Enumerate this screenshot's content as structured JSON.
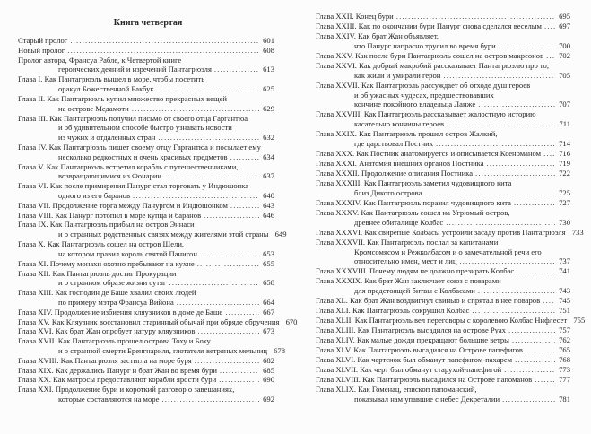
{
  "title": "Книга четвертая",
  "left": [
    {
      "lines": [
        "Старый пролог"
      ],
      "page": "601"
    },
    {
      "lines": [
        "Новый пролог"
      ],
      "page": "608"
    },
    {
      "lines": [
        "Пролог автора, Франсуа Рабле, к Четвертой книге",
        "героических деяний и изречений Пантагрюэля"
      ],
      "page": "613"
    },
    {
      "lines": [
        "Глава I. Как Пантагрюэль вышел в море, чтобы посетить",
        "оракул Божественной Бакбук"
      ],
      "page": "625"
    },
    {
      "lines": [
        "Глава II. Как Пантагрюэль купил множество прекрасных вещей",
        "на острове Медамоти"
      ],
      "page": "629"
    },
    {
      "lines": [
        "Глава III. Как Пантагрюэль получил письмо от своего отца Гаргантюа",
        "и об удивительном способе быстро узнавать новости",
        "из чужих и отдаленных стран"
      ],
      "page": "632"
    },
    {
      "lines": [
        "Глава IV. Как Пантагрюэль пишет своему отцу Гаргантюа и посылает ему",
        "несколько редкостных и очень красивых предметов"
      ],
      "page": "634"
    },
    {
      "lines": [
        "Глава V. Как Пантагрюэль встретил корабль с путешественниками,",
        "возвращающимися из Фонарии"
      ],
      "page": "637"
    },
    {
      "lines": [
        "Глава VI. Как после примирения Панург стал торговать у Индюшонка",
        "одного из его баранов"
      ],
      "page": "640"
    },
    {
      "lines": [
        "Глава VII. Продолжение торга между Панургом и Индюшонком"
      ],
      "page": "643"
    },
    {
      "lines": [
        "Глава VIII. Как Панург потопил в море купца и баранов"
      ],
      "page": "646"
    },
    {
      "lines": [
        "Глава IX. Как Пантагрюэль прибыл на остров Эннаси",
        "и о странных родственных связях между жителями этой страны"
      ],
      "page": "649"
    },
    {
      "lines": [
        "Глава X. Как Пантагрюэль сошел на остров Шели,",
        "на котором правил король святой Панигон"
      ],
      "page": "653"
    },
    {
      "lines": [
        "Глава XI. Почему монахи охотно пребывают на кухне"
      ],
      "page": "655"
    },
    {
      "lines": [
        "Глава XII. Как Пантагрюэль достиг Прокурации",
        "и о странном образе жизни сутяг"
      ],
      "page": "658"
    },
    {
      "lines": [
        "Глава XIII. Как господин де Баше хвалил своих людей",
        "по примеру мэтра Франсуа Вийона"
      ],
      "page": "664"
    },
    {
      "lines": [
        "Глава XIV. Продолжение избиения кляузников в доме де Баше"
      ],
      "page": "667"
    },
    {
      "lines": [
        "Глава XV. Как Кляузник восстановил старинный обычай при обряде обручения"
      ],
      "page": "670"
    },
    {
      "lines": [
        "Глава XVI. Как брат Жан опробует натуру кляузников"
      ],
      "page": "673"
    },
    {
      "lines": [
        "Глава XVII. Как Пантагрюэль прошел острова Тоху и Боху",
        "и о странной смерти Бренгнариля, глотателя ветряных мельниц"
      ],
      "page": "678"
    },
    {
      "lines": [
        "Глава XVIII. Как Пантагрюэля застигла на море буря"
      ],
      "page": "682"
    },
    {
      "lines": [
        "Глава XIX. Как держались Панург и брат Жан во время бури"
      ],
      "page": "685"
    },
    {
      "lines": [
        "Глава XX. Как матросы предоставляют корабли ярости бури"
      ],
      "page": "690"
    },
    {
      "lines": [
        "Глава XXI. Продолжение бури и короткий разговор о завещаниях,",
        "которые составляются на море"
      ],
      "page": "692"
    }
  ],
  "right": [
    {
      "lines": [
        "Глава XXII. Конец бури"
      ],
      "page": "695"
    },
    {
      "lines": [
        "Глава XXIII. Как по окончании бури Панург снова сделался веселым"
      ],
      "page": "697"
    },
    {
      "lines": [
        "Глава XXIV. Как брат Жан объявляет,",
        "что Панург напрасно трусил во время бури"
      ],
      "page": "700"
    },
    {
      "lines": [
        "Глава XXV. Как после бури Пантагрюэль сошел на остров макреонов"
      ],
      "page": "702"
    },
    {
      "lines": [
        "Глава XXVI. Как добрый макробий рассказывает Пантагрюэлю про то,",
        "как жили и умирали герои"
      ],
      "page": "705"
    },
    {
      "lines": [
        "Глава XXVII. Как Пантагрюэль рассуждает об отходе душ героев",
        "и об ужасных чудесах, предшествовавших",
        "кончине покойного владельца Ланже"
      ],
      "page": "707"
    },
    {
      "lines": [
        "Глава XXVIII. Как Пантагрюэль рассказывает жалостную историю",
        "касательно кончины героев"
      ],
      "page": "711"
    },
    {
      "lines": [
        "Глава XXIX. Как Пантагрюэль прошел остров Жалкий,",
        "где царствовал Постник"
      ],
      "page": "714"
    },
    {
      "lines": [
        "Глава XXX. Как Постник анатомируется и описывается Ксеноманом"
      ],
      "page": "716"
    },
    {
      "lines": [
        "Глава XXXI. Анатомия внешних органов Постника"
      ],
      "page": "719"
    },
    {
      "lines": [
        "Глава XXXII. Продолжение описания Постника"
      ],
      "page": "722"
    },
    {
      "lines": [
        "Глава XXXIII. Как Пантагрюэль заметил чудовищного кита",
        "близ Дикого острова"
      ],
      "page": "725"
    },
    {
      "lines": [
        "Глава XXXIV. Как Пантагрюэль поразил чудовищного кита"
      ],
      "page": "727"
    },
    {
      "lines": [
        "Глава XXXV. Как Пантагрюэль сошел на Угрюмый остров,",
        "древнее обиталище Колбас"
      ],
      "page": "730"
    },
    {
      "lines": [
        "Глава XXXVI. Как свирепые Колбасы устроили засаду против Пантагрюэля"
      ],
      "page": "733"
    },
    {
      "lines": [
        "Глава XXXVII. Как Пантагрюэль послал за капитанами",
        "Кромсомясом и Режколбасом и о замечательной речи его",
        "относительно имен, мест и лиц"
      ],
      "page": "737"
    },
    {
      "lines": [
        "Глава XXXVIII. Почему людям не должно презирать Колбас"
      ],
      "page": "741"
    },
    {
      "lines": [
        "Глава XXXIX. Как брат Жан заключает союз с поварами",
        "для предстоящей битвы с Колбасами"
      ],
      "page": "743"
    },
    {
      "lines": [
        "Глава XL. Как брат Жан воздвигнул свинью и спрятал в нее поваров"
      ],
      "page": "745"
    },
    {
      "lines": [
        "Глава XLI. Как Пантагрюэль сокрушил Колбас"
      ],
      "page": "751"
    },
    {
      "lines": [
        "Глава XLII. Как Пантагрюэль вел переговоры с королевою Колбас Нифлесет"
      ],
      "page": "755"
    },
    {
      "lines": [
        "Глава XLIII. Как Пантагрюэль высадился на острове Руах"
      ],
      "page": "757"
    },
    {
      "lines": [
        "Глава XLIV. Как малые дожди прекращают большие ветры"
      ],
      "page": "762"
    },
    {
      "lines": [
        "Глава XLV. Как Пантагрюэль высадился на Острове папефигов"
      ],
      "page": "765"
    },
    {
      "lines": [
        "Глава XLVI. Как чертенок был обманут папефигом-пахарем"
      ],
      "page": "768"
    },
    {
      "lines": [
        "Глава XLVII. Как черт был обманут старухой-папефигой"
      ],
      "page": "773"
    },
    {
      "lines": [
        "Глава XLVIII. Как Пантагрюэль высадился на Острове папоманов"
      ],
      "page": "777"
    },
    {
      "lines": [
        "Глава XLIX. Как Гоменац, епископ папоманский,",
        "показывал нам упавшие с небес Декреталии"
      ],
      "page": "781"
    }
  ]
}
